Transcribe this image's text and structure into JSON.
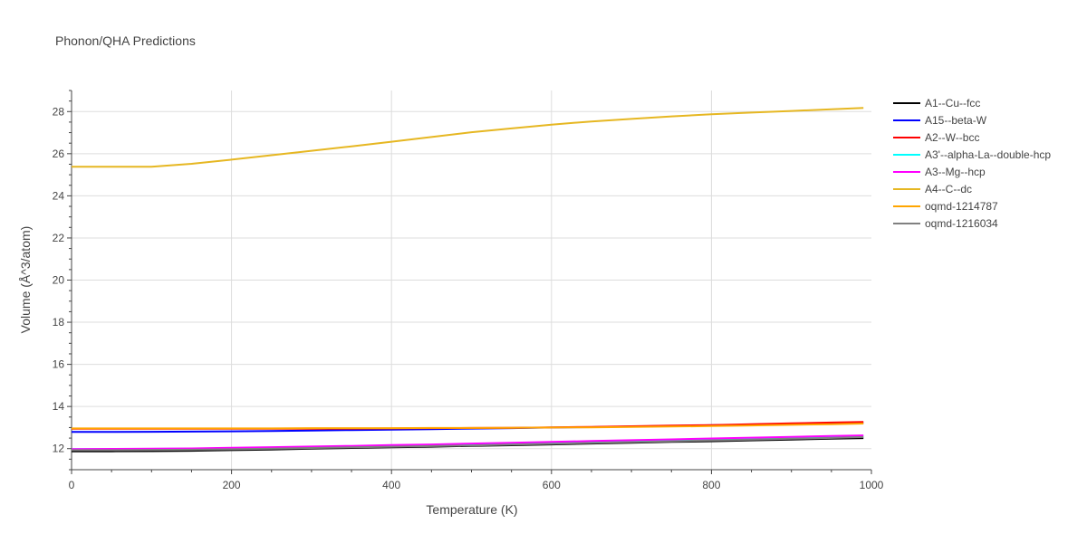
{
  "chart_data": {
    "type": "line",
    "title": "Phonon/QHA Predictions",
    "xlabel": "Temperature (K)",
    "ylabel": "Volume (Å^3/atom)",
    "xlim": [
      0,
      1000
    ],
    "ylim": [
      11,
      29
    ],
    "x_ticks": [
      0,
      200,
      400,
      600,
      800,
      1000
    ],
    "y_ticks": [
      12,
      14,
      16,
      18,
      20,
      22,
      24,
      26,
      28
    ],
    "grid": true,
    "legend_position": "right",
    "x": [
      0,
      50,
      100,
      150,
      200,
      250,
      300,
      350,
      400,
      450,
      500,
      550,
      600,
      650,
      700,
      750,
      800,
      850,
      900,
      950,
      990
    ],
    "series": [
      {
        "name": "A1--Cu--fcc",
        "color": "#000000",
        "values": [
          11.87,
          11.87,
          11.88,
          11.9,
          11.93,
          11.96,
          12.0,
          12.03,
          12.06,
          12.09,
          12.13,
          12.16,
          12.2,
          12.24,
          12.28,
          12.32,
          12.35,
          12.39,
          12.43,
          12.47,
          12.5
        ]
      },
      {
        "name": "A15--beta-W",
        "color": "#0000ff",
        "values": [
          12.79,
          12.79,
          12.8,
          12.81,
          12.82,
          12.84,
          12.86,
          12.88,
          12.9,
          12.92,
          12.95,
          12.97,
          13.0,
          13.02,
          13.05,
          13.08,
          13.11,
          13.14,
          13.17,
          13.2,
          13.22
        ]
      },
      {
        "name": "A2--W--bcc",
        "color": "#ff0000",
        "values": [
          12.94,
          12.94,
          12.94,
          12.94,
          12.94,
          12.94,
          12.94,
          12.95,
          12.96,
          12.97,
          12.98,
          12.99,
          13.01,
          13.03,
          13.06,
          13.09,
          13.12,
          13.16,
          13.2,
          13.24,
          13.27
        ]
      },
      {
        "name": "A3'--alpha-La--double-hcp",
        "color": "#00ffff",
        "values": [
          11.98,
          11.98,
          11.99,
          12.0,
          12.02,
          12.05,
          12.08,
          12.11,
          12.14,
          12.17,
          12.2,
          12.24,
          12.28,
          12.32,
          12.36,
          12.4,
          12.44,
          12.48,
          12.52,
          12.56,
          12.59
        ]
      },
      {
        "name": "A3--Mg--hcp",
        "color": "#ff00ff",
        "values": [
          11.98,
          11.99,
          12.0,
          12.01,
          12.04,
          12.07,
          12.1,
          12.13,
          12.17,
          12.2,
          12.24,
          12.28,
          12.32,
          12.36,
          12.4,
          12.44,
          12.48,
          12.52,
          12.56,
          12.6,
          12.63
        ]
      },
      {
        "name": "A4--C--dc",
        "color": "#e6b722",
        "values": [
          25.38,
          25.38,
          25.38,
          25.52,
          25.72,
          25.93,
          26.14,
          26.35,
          26.57,
          26.79,
          27.02,
          27.2,
          27.38,
          27.53,
          27.65,
          27.77,
          27.87,
          27.95,
          28.03,
          28.11,
          28.17
        ]
      },
      {
        "name": "oqmd-1214787",
        "color": "#ffa500",
        "values": [
          12.96,
          12.96,
          12.96,
          12.96,
          12.96,
          12.96,
          12.97,
          12.97,
          12.97,
          12.98,
          12.98,
          12.99,
          13.0,
          13.01,
          13.03,
          13.05,
          13.07,
          13.1,
          13.13,
          13.16,
          13.19
        ]
      },
      {
        "name": "oqmd-1216034",
        "color": "#808080",
        "values": [
          11.93,
          11.93,
          11.94,
          11.95,
          11.97,
          12.0,
          12.03,
          12.06,
          12.09,
          12.12,
          12.15,
          12.19,
          12.23,
          12.27,
          12.31,
          12.35,
          12.39,
          12.43,
          12.47,
          12.51,
          12.55
        ]
      }
    ]
  }
}
